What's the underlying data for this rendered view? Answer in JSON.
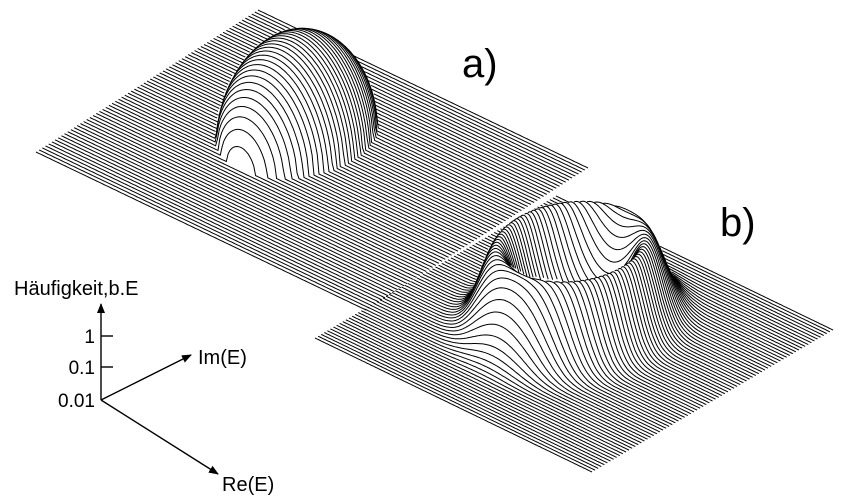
{
  "panels": [
    {
      "label": "a)",
      "shape": "hill"
    },
    {
      "label": "b)",
      "shape": "ring"
    }
  ],
  "axes": {
    "vertical_label": "Häufigkeit,b.E",
    "vertical_ticks": [
      "1",
      "0.1",
      "0.01"
    ],
    "diagonal_label_1": "Im(E)",
    "diagonal_label_2": "Re(E)"
  }
}
